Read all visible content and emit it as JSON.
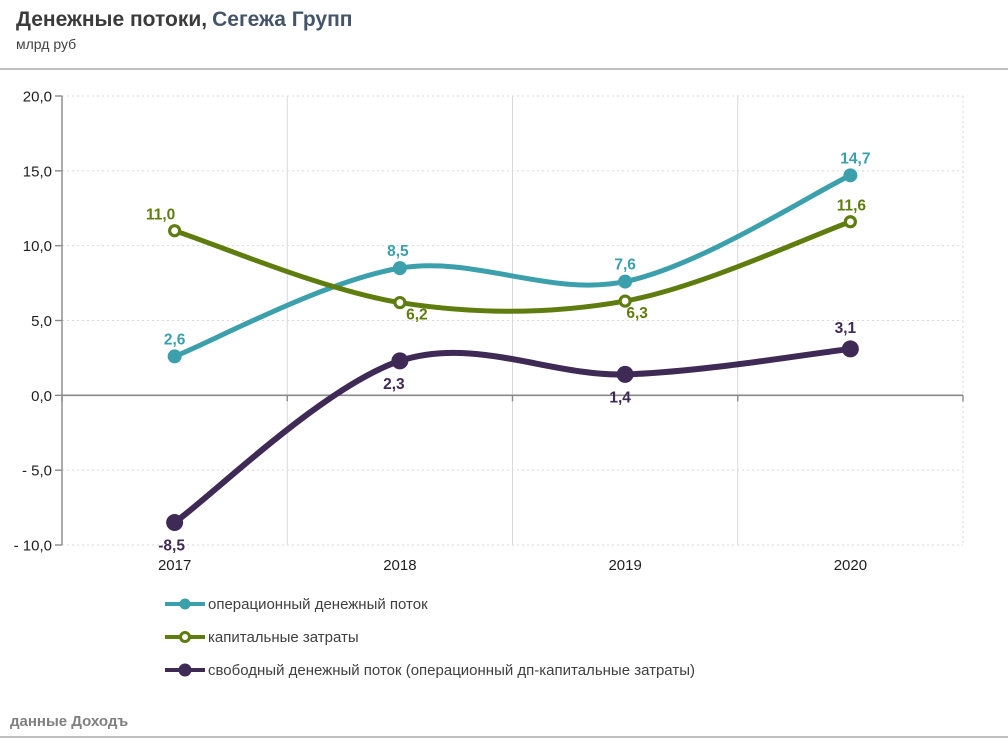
{
  "header": {
    "title_main": "Денежные потоки,",
    "title_accent": "Сегежа Групп",
    "subtitle": "млрд руб"
  },
  "chart_data": {
    "type": "line",
    "title": "Денежные потоки, Сегежа Групп",
    "units": "млрд руб",
    "x": [
      "2017",
      "2018",
      "2019",
      "2020"
    ],
    "series": [
      {
        "name": "операционный денежный поток",
        "color": "#3BA0AC",
        "marker": "filled-circle",
        "values": [
          2.6,
          8.5,
          7.6,
          14.7
        ],
        "point_labels": [
          "2,6",
          "8,5",
          "7,6",
          "14,7"
        ],
        "label_positions": [
          "above",
          "above",
          "above",
          "above"
        ]
      },
      {
        "name": "капитальные затраты",
        "color": "#5F7D0F",
        "marker": "open-circle",
        "values": [
          11.0,
          6.2,
          6.3,
          11.6
        ],
        "point_labels": [
          "11,0",
          "6,2",
          "6,3",
          "11,6"
        ],
        "label_positions": [
          "above",
          "below",
          "below",
          "above"
        ]
      },
      {
        "name": "свободный денежный поток (операционный дп-капитальные затраты)",
        "color": "#3F2A56",
        "marker": "filled-circle",
        "values": [
          -8.5,
          2.3,
          1.4,
          3.1
        ],
        "point_labels": [
          "-8,5",
          "2,3",
          "1,4",
          "3,1"
        ],
        "label_positions": [
          "below",
          "below",
          "below",
          "above"
        ]
      }
    ],
    "ylim": [
      -10,
      20
    ],
    "ytick_step": 5,
    "yticks": [
      20,
      15,
      10,
      5,
      0,
      -5,
      -10
    ],
    "ytick_labels": [
      "20,0",
      "15,0",
      "10,0",
      "5,0",
      "0,0",
      "- 5,0",
      "- 10,0"
    ],
    "grid": true,
    "smooth_lines": true,
    "legend_position": "bottom-left"
  },
  "footer": {
    "source": "данные Доходъ"
  }
}
